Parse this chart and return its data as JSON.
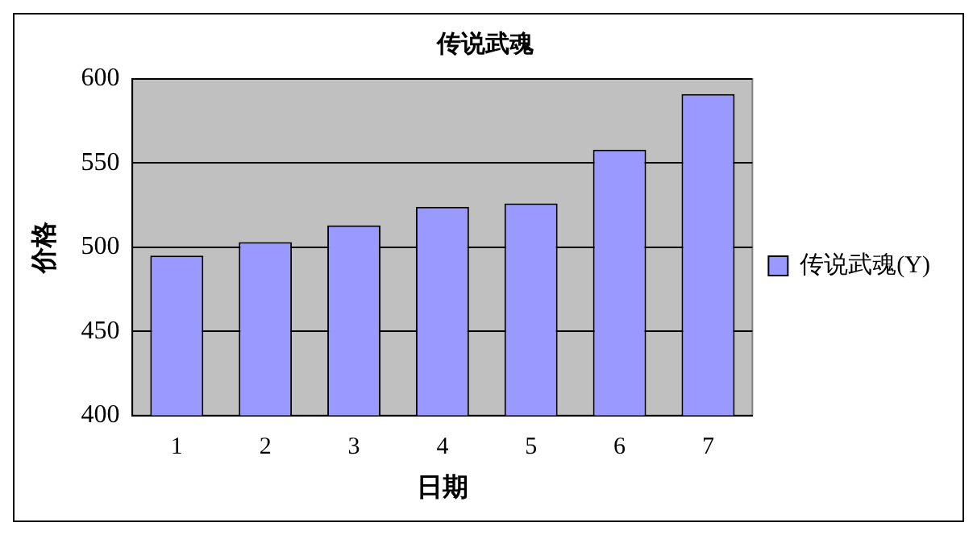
{
  "chart_data": {
    "type": "bar",
    "title": "传说武魂",
    "xlabel": "日期",
    "ylabel": "价格",
    "categories": [
      "1",
      "2",
      "3",
      "4",
      "5",
      "6",
      "7"
    ],
    "series": [
      {
        "name": "传说武魂(Y)",
        "color": "#9999ff",
        "values": [
          495,
          503,
          513,
          524,
          526,
          558,
          591
        ]
      }
    ],
    "ylim": [
      400,
      600
    ],
    "yticks": [
      400,
      450,
      500,
      550,
      600
    ],
    "grid": "y",
    "legend": "right"
  }
}
